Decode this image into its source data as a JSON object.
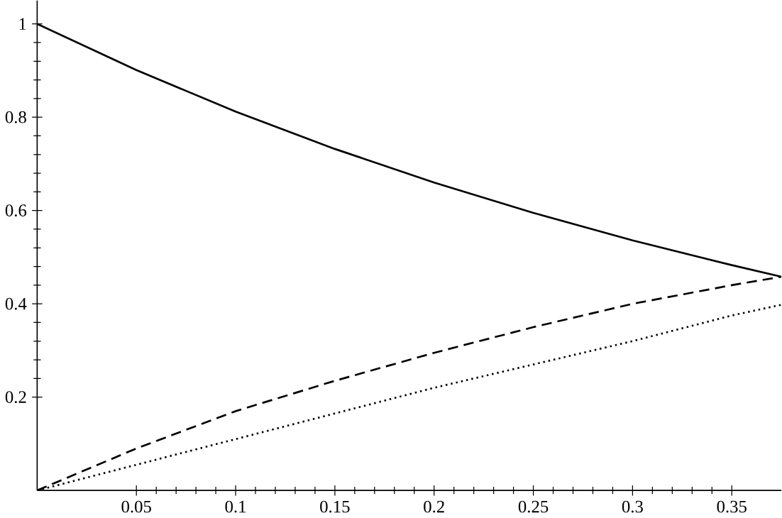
{
  "chart_data": {
    "type": "line",
    "x": [
      0,
      0.05,
      0.1,
      0.15,
      0.2,
      0.25,
      0.3,
      0.35,
      0.375
    ],
    "series": [
      {
        "color": "#000000",
        "line_style": "solid",
        "values": [
          1,
          0.901,
          0.812,
          0.732,
          0.66,
          0.595,
          0.536,
          0.483,
          0.458
        ]
      },
      {
        "color": "#000000",
        "line_style": "dashed",
        "values": [
          0,
          0.09,
          0.17,
          0.235,
          0.295,
          0.35,
          0.4,
          0.44,
          0.458
        ]
      },
      {
        "color": "#000000",
        "line_style": "dotted",
        "values": [
          0,
          0.055,
          0.11,
          0.165,
          0.22,
          0.27,
          0.32,
          0.375,
          0.398
        ]
      }
    ],
    "xlim": [
      0,
      0.375
    ],
    "ylim": [
      0,
      1.05
    ],
    "xticks": [
      0.05,
      0.1,
      0.15,
      0.2,
      0.25,
      0.3,
      0.35
    ],
    "yticks": [
      0.2,
      0.4,
      0.6,
      0.8,
      1
    ],
    "grid": false,
    "marker": "none"
  }
}
